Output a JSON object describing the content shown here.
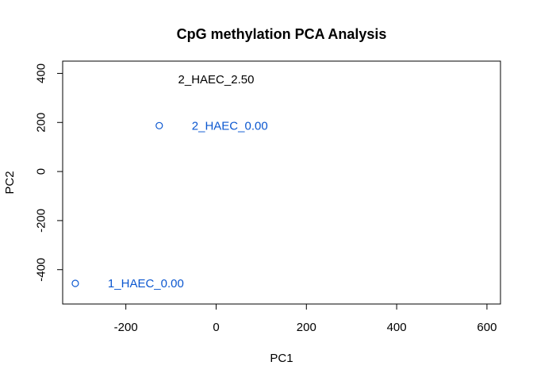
{
  "chart_data": {
    "type": "scatter",
    "title": "CpG methylation PCA Analysis",
    "xlabel": "PC1",
    "ylabel": "PC2",
    "xlim": [
      -340,
      630
    ],
    "ylim": [
      -540,
      450
    ],
    "xticks": [
      -200,
      0,
      200,
      400,
      600
    ],
    "xtick_labels": [
      "-200",
      "0",
      "200",
      "400",
      "600"
    ],
    "yticks": [
      -400,
      -200,
      0,
      200,
      400
    ],
    "ytick_labels": [
      "-400",
      "-200",
      "0",
      "200",
      "400"
    ],
    "grid": false,
    "points": [
      {
        "x": -312,
        "y": -456,
        "label": "1_HAEC_0.00",
        "color": "#0b57d0",
        "marker": "circle"
      },
      {
        "x": -126,
        "y": 187,
        "label": "2_HAEC_0.00",
        "color": "#0b57d0",
        "marker": "circle"
      }
    ],
    "annotations": [
      {
        "x": 0,
        "y": 375,
        "text": "2_HAEC_2.50",
        "color": "#000000"
      }
    ]
  }
}
